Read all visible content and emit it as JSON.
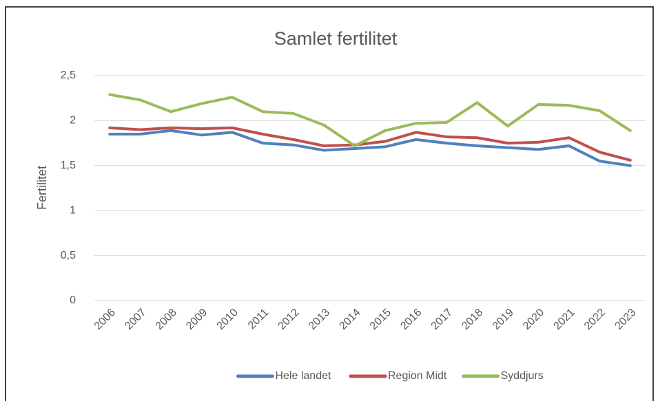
{
  "chart_data": {
    "type": "line",
    "title": "Samlet fertilitet",
    "y_label": "Fertilitet",
    "categories": [
      "2006",
      "2007",
      "2008",
      "2009",
      "2010",
      "2011",
      "2012",
      "2013",
      "2014",
      "2015",
      "2016",
      "2017",
      "2018",
      "2019",
      "2020",
      "2021",
      "2022",
      "2023"
    ],
    "series": [
      {
        "name": "Hele landet",
        "color": "#4f81bd",
        "values": [
          1.85,
          1.85,
          1.89,
          1.84,
          1.87,
          1.75,
          1.73,
          1.67,
          1.69,
          1.71,
          1.79,
          1.75,
          1.72,
          1.7,
          1.68,
          1.72,
          1.55,
          1.5
        ]
      },
      {
        "name": "Region Midt",
        "color": "#c0504d",
        "values": [
          1.92,
          1.9,
          1.92,
          1.91,
          1.92,
          1.85,
          1.79,
          1.72,
          1.73,
          1.77,
          1.87,
          1.82,
          1.81,
          1.75,
          1.76,
          1.81,
          1.65,
          1.56
        ]
      },
      {
        "name": "Syddjurs",
        "color": "#9bbb59",
        "values": [
          2.29,
          2.23,
          2.1,
          2.19,
          2.26,
          2.1,
          2.08,
          1.95,
          1.72,
          1.89,
          1.97,
          1.98,
          2.2,
          1.94,
          2.18,
          2.17,
          2.11,
          1.89
        ]
      }
    ],
    "ylim": [
      0,
      2.5
    ],
    "yticks": [
      0,
      {
        "value": 0.5,
        "label": "0,5"
      },
      1,
      {
        "value": 1.5,
        "label": "1,5"
      },
      2,
      {
        "value": 2.5,
        "label": "2,5"
      }
    ],
    "grid": true,
    "legend": "bottom"
  }
}
